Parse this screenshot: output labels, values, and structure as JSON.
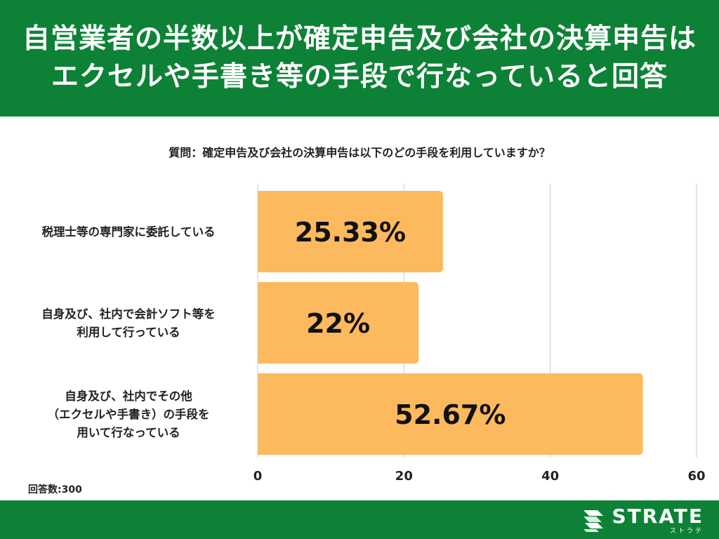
{
  "header": {
    "title_line1": "自営業者の半数以上が確定申告及び会社の決算申告は",
    "title_line2": "エクセルや手書き等の手段で行なっていると回答"
  },
  "question": "質問：確定申告及び会社の決算申告は以下のどの手段を利用していますか？",
  "note": "回答数:300",
  "footer": {
    "logo_name": "STRATE",
    "logo_sub": "ストラテ"
  },
  "colors": {
    "brand": "#0d8236",
    "bar": "#fdb95d",
    "grid": "#cccccc"
  },
  "chart_data": {
    "type": "bar",
    "orientation": "horizontal",
    "categories": [
      [
        "税理士等の専門家に委託している"
      ],
      [
        "自身及び、社内で会計ソフト等を",
        "利用して行っている"
      ],
      [
        "自身及び、社内でその他",
        "（エクセルや手書き）の手段を",
        "用いて行なっている"
      ]
    ],
    "values": [
      25.33,
      22,
      52.67
    ],
    "data_labels": [
      "25.33%",
      "22%",
      "52.67%"
    ],
    "xlim": [
      0,
      60
    ],
    "xticks": [
      0,
      20,
      40,
      60
    ],
    "grid": true
  }
}
